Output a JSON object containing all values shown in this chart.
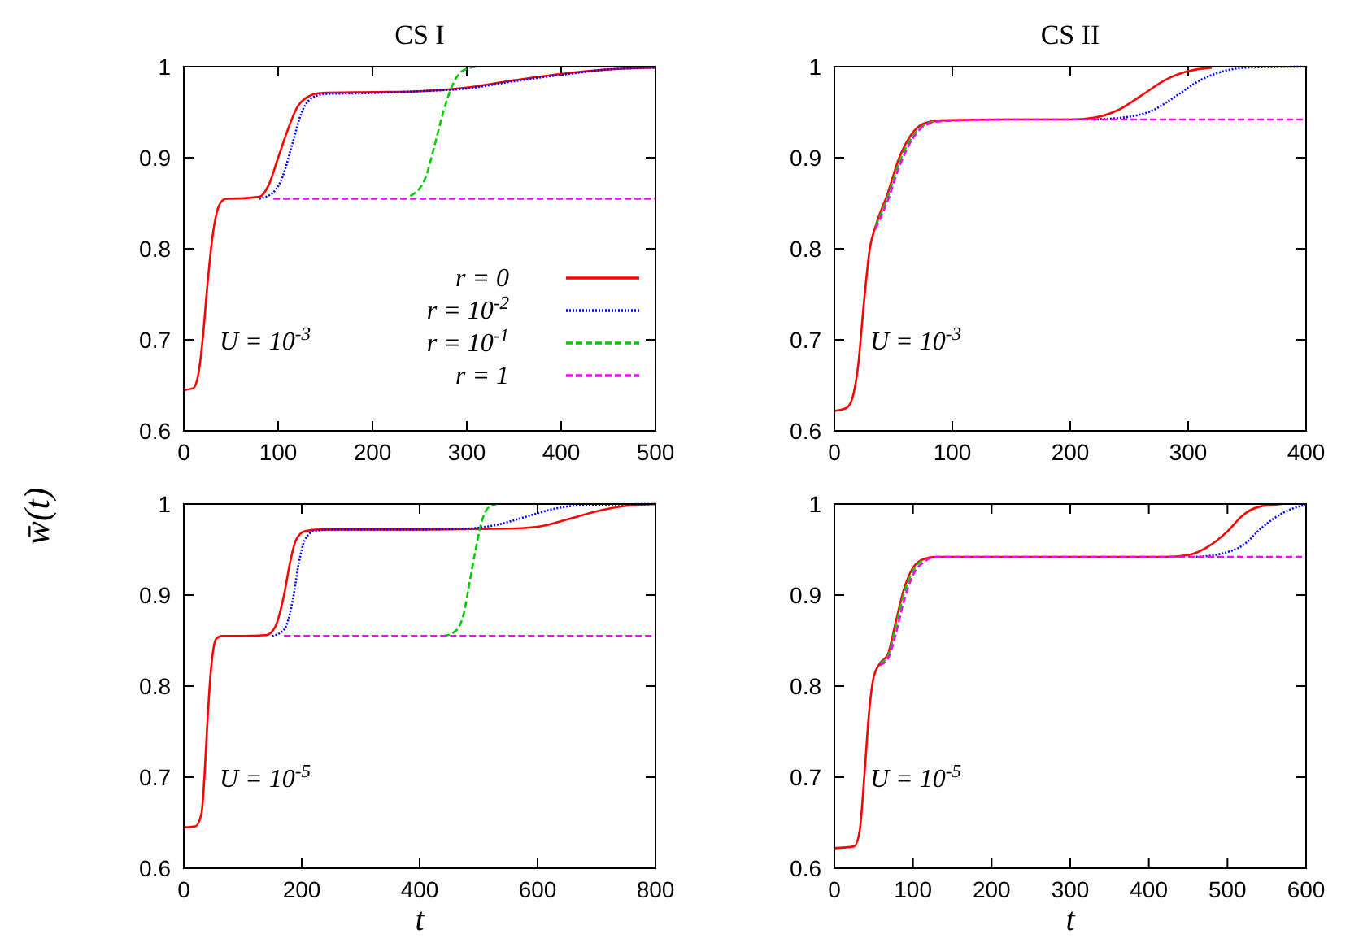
{
  "chart_data": [
    {
      "type": "line",
      "title": "CS I",
      "ylabel": "w̄(t)",
      "xlim": [
        0,
        500
      ],
      "ylim": [
        0.6,
        1
      ],
      "xticks": [
        0,
        100,
        200,
        300,
        400,
        500
      ],
      "yticks": [
        0.6,
        0.7,
        0.8,
        0.9,
        1
      ],
      "grid": false,
      "legend": "bottom right",
      "annotations": [
        "U = 10$^{-3}$"
      ],
      "series": [
        {
          "name": "r = 0",
          "color": "#ff0000",
          "line_style": "solid",
          "x": [
            0,
            10,
            15,
            20,
            25,
            30,
            35,
            40,
            45,
            50,
            80,
            90,
            100,
            110,
            120,
            130,
            145,
            200,
            250,
            300,
            350,
            400,
            450,
            500
          ],
          "values": [
            0.645,
            0.647,
            0.66,
            0.7,
            0.76,
            0.81,
            0.84,
            0.852,
            0.855,
            0.855,
            0.857,
            0.87,
            0.9,
            0.93,
            0.955,
            0.966,
            0.971,
            0.972,
            0.973,
            0.977,
            0.985,
            0.992,
            0.997,
            0.999
          ]
        },
        {
          "name": "r = 10$^{-2}$",
          "color": "#0000ff",
          "line_style": "dotted",
          "x": [
            80,
            95,
            105,
            115,
            125,
            135,
            150,
            200,
            250,
            300,
            350,
            400,
            450,
            500
          ],
          "values": [
            0.855,
            0.862,
            0.88,
            0.915,
            0.95,
            0.965,
            0.97,
            0.971,
            0.973,
            0.976,
            0.984,
            0.991,
            0.997,
            0.999
          ]
        },
        {
          "name": "r = 10$^{-1}$",
          "color": "#00cc00",
          "line_style": "dashed",
          "x": [
            240,
            255,
            265,
            275,
            285,
            295,
            310
          ],
          "values": [
            0.858,
            0.875,
            0.91,
            0.95,
            0.98,
            0.995,
            1.0
          ]
        },
        {
          "name": "r = 1",
          "color": "#ff00ff",
          "line_style": "dashed",
          "x": [
            95,
            500
          ],
          "values": [
            0.855,
            0.855
          ]
        }
      ]
    },
    {
      "type": "line",
      "title": "CS II",
      "xlim": [
        0,
        400
      ],
      "ylim": [
        0.6,
        1
      ],
      "xticks": [
        0,
        100,
        200,
        300,
        400
      ],
      "yticks": [
        0.6,
        0.7,
        0.8,
        0.9,
        1
      ],
      "grid": false,
      "annotations": [
        "U = 10$^{-3}$"
      ],
      "series": [
        {
          "color": "#ff0000",
          "line_style": "solid",
          "x": [
            0,
            10,
            15,
            20,
            25,
            30,
            35,
            45,
            55,
            65,
            75,
            90,
            150,
            200,
            220,
            240,
            260,
            280,
            300,
            320
          ],
          "values": [
            0.622,
            0.625,
            0.635,
            0.67,
            0.74,
            0.8,
            0.825,
            0.86,
            0.9,
            0.925,
            0.937,
            0.941,
            0.942,
            0.942,
            0.944,
            0.952,
            0.968,
            0.985,
            0.995,
            0.999
          ]
        },
        {
          "color": "#0000ff",
          "line_style": "dotted",
          "x": [
            220,
            250,
            270,
            290,
            310,
            330,
            350,
            400
          ],
          "values": [
            0.942,
            0.945,
            0.952,
            0.968,
            0.985,
            0.995,
            0.999,
            1.0
          ]
        },
        {
          "color": "#00cc00",
          "line_style": "dashed",
          "x": [
            35,
            45,
            55,
            65,
            75,
            90
          ],
          "values": [
            0.825,
            0.856,
            0.895,
            0.921,
            0.935,
            0.941
          ]
        },
        {
          "color": "#ff00ff",
          "line_style": "dashed",
          "x": [
            35,
            45,
            55,
            65,
            75,
            90,
            150,
            400
          ],
          "values": [
            0.822,
            0.852,
            0.89,
            0.918,
            0.934,
            0.94,
            0.942,
            0.942
          ]
        }
      ]
    },
    {
      "type": "line",
      "xlabel": "t",
      "xlim": [
        0,
        800
      ],
      "ylim": [
        0.6,
        1
      ],
      "xticks": [
        0,
        200,
        400,
        600,
        800
      ],
      "yticks": [
        0.6,
        0.7,
        0.8,
        0.9,
        1
      ],
      "grid": false,
      "annotations": [
        "U = 10$^{-5}$"
      ],
      "series": [
        {
          "color": "#ff0000",
          "line_style": "solid",
          "x": [
            0,
            20,
            30,
            35,
            40,
            45,
            50,
            55,
            65,
            100,
            140,
            155,
            170,
            180,
            190,
            205,
            230,
            400,
            550,
            600,
            650,
            700,
            750,
            800
          ],
          "values": [
            0.645,
            0.646,
            0.66,
            0.7,
            0.76,
            0.81,
            0.84,
            0.852,
            0.855,
            0.855,
            0.856,
            0.865,
            0.9,
            0.935,
            0.96,
            0.97,
            0.972,
            0.972,
            0.973,
            0.975,
            0.983,
            0.992,
            0.998,
            1.0
          ]
        },
        {
          "color": "#0000ff",
          "line_style": "dotted",
          "x": [
            150,
            170,
            185,
            195,
            205,
            220,
            250,
            400,
            480,
            530,
            580,
            630,
            680,
            800
          ],
          "values": [
            0.855,
            0.862,
            0.895,
            0.935,
            0.96,
            0.97,
            0.972,
            0.972,
            0.973,
            0.977,
            0.986,
            0.995,
            0.999,
            1.0
          ]
        },
        {
          "color": "#00cc00",
          "line_style": "dashed",
          "x": [
            440,
            460,
            475,
            485,
            495,
            505,
            515,
            530
          ],
          "values": [
            0.855,
            0.86,
            0.88,
            0.915,
            0.95,
            0.98,
            0.995,
            1.0
          ]
        },
        {
          "color": "#ff00ff",
          "line_style": "dashed",
          "x": [
            170,
            800
          ],
          "values": [
            0.855,
            0.855
          ]
        }
      ]
    },
    {
      "type": "line",
      "xlabel": "t",
      "xlim": [
        0,
        600
      ],
      "ylim": [
        0.6,
        1
      ],
      "xticks": [
        0,
        100,
        200,
        300,
        400,
        500,
        600
      ],
      "yticks": [
        0.6,
        0.7,
        0.8,
        0.9,
        1
      ],
      "grid": false,
      "annotations": [
        "U = 10$^{-5}$"
      ],
      "series": [
        {
          "color": "#ff0000",
          "line_style": "solid",
          "x": [
            0,
            25,
            32,
            38,
            44,
            50,
            58,
            68,
            78,
            88,
            100,
            115,
            130,
            300,
            420,
            450,
            475,
            500,
            520,
            540,
            570
          ],
          "values": [
            0.622,
            0.624,
            0.64,
            0.7,
            0.77,
            0.81,
            0.825,
            0.835,
            0.87,
            0.905,
            0.93,
            0.94,
            0.942,
            0.942,
            0.942,
            0.944,
            0.953,
            0.97,
            0.988,
            0.997,
            1.0
          ]
        },
        {
          "color": "#0000ff",
          "line_style": "dotted",
          "x": [
            460,
            490,
            520,
            545,
            570,
            590,
            600
          ],
          "values": [
            0.942,
            0.945,
            0.955,
            0.975,
            0.99,
            0.997,
            0.999
          ]
        },
        {
          "color": "#00cc00",
          "line_style": "dashed",
          "x": [
            58,
            68,
            78,
            88,
            100,
            115
          ],
          "values": [
            0.825,
            0.833,
            0.865,
            0.9,
            0.927,
            0.939
          ]
        },
        {
          "color": "#ff00ff",
          "line_style": "dashed",
          "x": [
            58,
            68,
            78,
            88,
            100,
            115,
            130,
            600
          ],
          "values": [
            0.823,
            0.83,
            0.857,
            0.892,
            0.922,
            0.937,
            0.942,
            0.942
          ]
        }
      ]
    }
  ]
}
